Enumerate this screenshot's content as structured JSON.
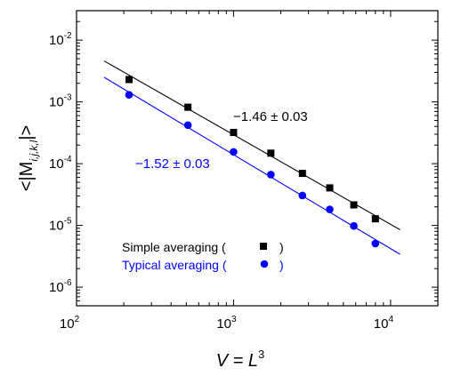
{
  "chart_data": {
    "type": "scatter",
    "xscale": "log",
    "yscale": "log",
    "xlim": [
      100,
      20000
    ],
    "ylim": [
      5e-07,
      0.03
    ],
    "grid": false,
    "xlabel": {
      "main": "V = L",
      "sup": "3"
    },
    "ylabel": {
      "prefix": "<|M",
      "sub": "i,j,k,l",
      "suffix": "|>"
    },
    "x_ticks": [
      {
        "value": 100,
        "base": "10",
        "exp": "2"
      },
      {
        "value": 1000,
        "base": "10",
        "exp": "3"
      },
      {
        "value": 10000,
        "base": "10",
        "exp": "4"
      }
    ],
    "y_ticks": [
      {
        "value": 1e-06,
        "base": "10",
        "exp": "-6"
      },
      {
        "value": 1e-05,
        "base": "10",
        "exp": "-5"
      },
      {
        "value": 0.0001,
        "base": "10",
        "exp": "-4"
      },
      {
        "value": 0.001,
        "base": "10",
        "exp": "-3"
      },
      {
        "value": 0.01,
        "base": "10",
        "exp": "-2"
      }
    ],
    "series": [
      {
        "name": "Simple averaging",
        "legend_label": "Simple averaging (",
        "legend_close": ")",
        "marker": "square",
        "color": "#000000",
        "x": [
          216,
          512,
          1000,
          1728,
          2744,
          4096,
          5832,
          8000
        ],
        "y": [
          0.0023,
          0.00082,
          0.00032,
          0.000148,
          6.95e-05,
          4.05e-05,
          2.15e-05,
          1.28e-05
        ],
        "fit": {
          "x": [
            150,
            11500
          ],
          "y": [
            0.0046,
            8.5e-06
          ],
          "slope_label": "−1.46 ± 0.03"
        }
      },
      {
        "name": "Typical averaging",
        "legend_label": "Typical averaging (",
        "legend_close": ")",
        "marker": "circle",
        "color": "#0000ff",
        "x": [
          216,
          512,
          1000,
          1728,
          2744,
          4096,
          5832,
          8000
        ],
        "y": [
          0.0013,
          0.00042,
          0.000155,
          6.65e-05,
          3.05e-05,
          1.82e-05,
          9.8e-06,
          5.1e-06
        ],
        "fit": {
          "x": [
            150,
            11500
          ],
          "y": [
            0.0025,
            3.4e-06
          ],
          "slope_label": "−1.52 ± 0.03"
        }
      }
    ]
  }
}
